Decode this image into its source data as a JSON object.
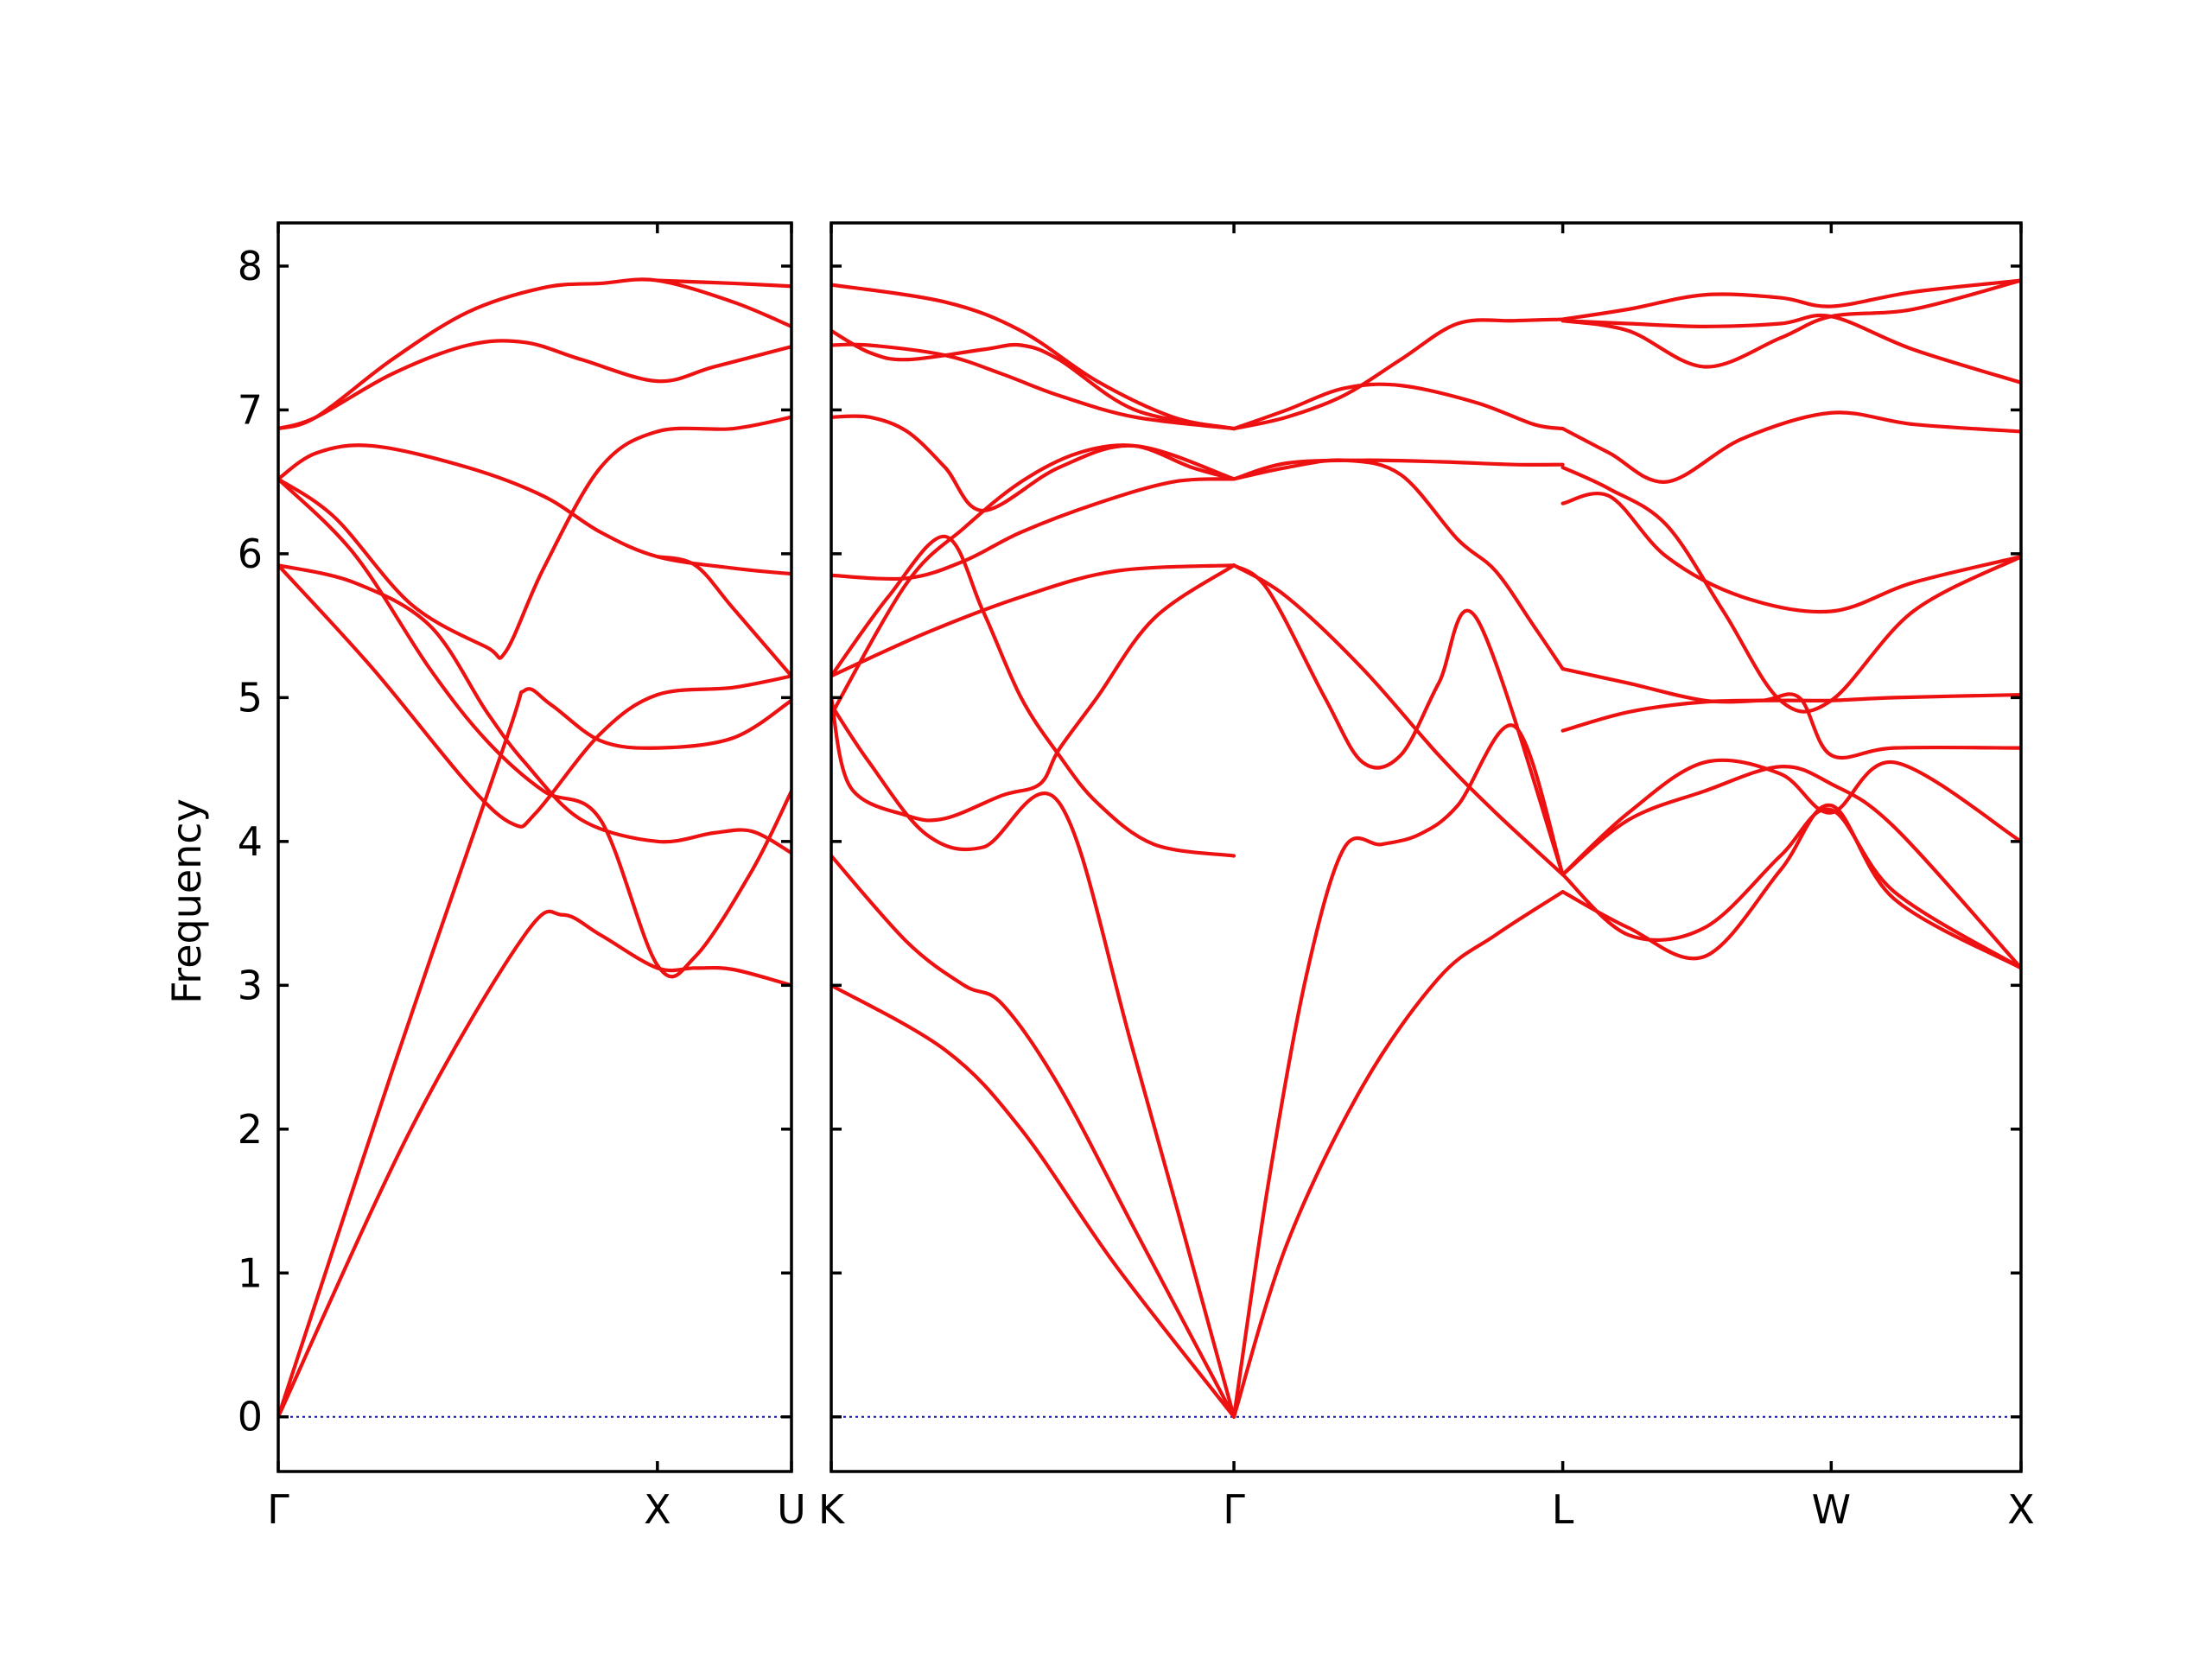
{
  "chart_data": {
    "type": "line",
    "ylabel": "Frequency",
    "xlabel": "",
    "ylim": [
      -0.38,
      8.3
    ],
    "yticks": [
      0,
      1,
      2,
      3,
      4,
      5,
      6,
      7,
      8
    ],
    "grid": false,
    "line_color": "#ee1111",
    "zero_line_color": "#1111aa",
    "panels": [
      {
        "labels": [
          {
            "text": "Γ",
            "x": 0
          },
          {
            "text": "X",
            "x": 1
          },
          {
            "text": "U",
            "x": 1.3536
          }
        ],
        "xlim": [
          0,
          1.3536
        ],
        "series": [
          {
            "x": [
              0,
              0.35,
              0.65,
              0.75,
              0.85,
              1.0,
              1.1,
              1.2,
              1.3536
            ],
            "y": [
              0,
              2.0,
              3.35,
              3.49,
              3.35,
              3.12,
              3.12,
              3.11,
              3.0
            ]
          },
          {
            "x": [
              0,
              0.3,
              0.6,
              0.65,
              0.72,
              0.85,
              1.0,
              1.2,
              1.3536
            ],
            "y": [
              0,
              2.4,
              4.7,
              5.05,
              4.95,
              4.7,
              4.65,
              4.72,
              4.98
            ]
          },
          {
            "x": [
              0,
              0.25,
              0.5,
              0.62,
              0.68,
              0.85,
              1.0,
              1.2,
              1.3536
            ],
            "y": [
              5.92,
              5.2,
              4.4,
              4.12,
              4.2,
              4.75,
              5.02,
              5.07,
              5.15
            ]
          },
          {
            "x": [
              0,
              0.2,
              0.4,
              0.55,
              0.65,
              0.8,
              1.0,
              1.15,
              1.25,
              1.3536
            ],
            "y": [
              5.92,
              5.8,
              5.5,
              4.9,
              4.55,
              4.15,
              4.0,
              4.06,
              4.07,
              3.92
            ]
          },
          {
            "x": [
              0,
              0.15,
              0.35,
              0.55,
              0.6,
              0.7,
              0.85,
              1.0,
              1.2,
              1.3536
            ],
            "y": [
              6.52,
              6.25,
              5.65,
              5.35,
              5.32,
              5.9,
              6.6,
              6.85,
              6.87,
              6.95
            ]
          },
          {
            "x": [
              0,
              0.2,
              0.4,
              0.55,
              0.7,
              0.85,
              1.0,
              1.1,
              1.25,
              1.3536
            ],
            "y": [
              6.52,
              6.0,
              5.2,
              4.7,
              4.35,
              4.15,
              3.14,
              3.2,
              3.8,
              4.35
            ]
          },
          {
            "x": [
              0,
              0.1,
              0.25,
              0.5,
              0.7,
              0.85,
              1.0,
              1.2,
              1.3536
            ],
            "y": [
              6.52,
              6.7,
              6.75,
              6.6,
              6.4,
              6.15,
              5.98,
              5.9,
              5.86
            ]
          },
          {
            "x": [
              0,
              0.1,
              0.3,
              0.5,
              0.65,
              0.8,
              1.0,
              1.15,
              1.3536
            ],
            "y": [
              6.87,
              6.95,
              7.25,
              7.45,
              7.47,
              7.35,
              7.2,
              7.3,
              7.44
            ]
          },
          {
            "x": [
              0,
              0.1,
              0.3,
              0.5,
              0.7,
              0.85,
              1.0,
              1.2,
              1.3536
            ],
            "y": [
              6.87,
              6.95,
              7.35,
              7.68,
              7.85,
              7.88,
              7.9,
              7.75,
              7.58
            ]
          },
          {
            "x": [
              1.0,
              1.1,
              1.2,
              1.3536
            ],
            "y": [
              5.98,
              5.92,
              5.62,
              5.15
            ]
          },
          {
            "x": [
              1.0,
              1.1,
              1.2,
              1.3536
            ],
            "y": [
              7.9,
              7.89,
              7.88,
              7.86
            ]
          }
        ]
      },
      {
        "labels": [
          {
            "text": "K",
            "x": 0
          },
          {
            "text": "Γ",
            "x": 1.0607
          },
          {
            "text": "L",
            "x": 1.9268
          },
          {
            "text": "W",
            "x": 2.6339
          },
          {
            "text": "X",
            "x": 3.1339
          }
        ],
        "xlim": [
          0,
          3.1339
        ],
        "series": [
          {
            "x": [
              0,
              0.3,
              0.5,
              0.75,
              1.0607
            ],
            "y": [
              3.0,
              2.55,
              2.0,
              1.05,
              0
            ]
          },
          {
            "x": [
              0,
              0.2,
              0.35,
              0.45,
              0.6,
              0.8,
              1.0607
            ],
            "y": [
              3.9,
              3.3,
              3.0,
              2.87,
              2.3,
              1.3,
              0
            ]
          },
          {
            "x": [
              0,
              0.1,
              0.25,
              0.4,
              0.6,
              0.8,
              1.0607
            ],
            "y": [
              4.95,
              4.55,
              4.05,
              3.96,
              4.27,
              2.5,
              0
            ]
          },
          {
            "x": [
              0,
              0.05,
              0.2,
              0.3,
              0.45,
              0.55,
              0.6,
              0.7,
              0.85,
              1.0607
            ],
            "y": [
              5.0,
              4.38,
              4.18,
              4.16,
              4.32,
              4.4,
              4.64,
              5.0,
              5.55,
              5.92
            ]
          },
          {
            "x": [
              0,
              0.15,
              0.3,
              0.4,
              0.5,
              0.6,
              0.7,
              0.85,
              1.0607
            ],
            "y": [
              5.15,
              5.7,
              6.12,
              5.6,
              5.0,
              4.6,
              4.27,
              3.98,
              3.9
            ]
          },
          {
            "x": [
              0,
              0.25,
              0.5,
              0.75,
              1.0607
            ],
            "y": [
              5.15,
              5.45,
              5.7,
              5.88,
              5.92
            ]
          },
          {
            "x": [
              0,
              0.2,
              0.35,
              0.5,
              0.7,
              0.9,
              1.0607
            ],
            "y": [
              5.85,
              5.83,
              5.95,
              6.15,
              6.35,
              6.5,
              6.52
            ]
          },
          {
            "x": [
              0,
              0.2,
              0.35,
              0.5,
              0.65,
              0.8,
              0.95,
              1.0607
            ],
            "y": [
              4.88,
              5.8,
              6.18,
              6.5,
              6.7,
              6.75,
              6.6,
              6.52
            ]
          },
          {
            "x": [
              0,
              0.1,
              0.3,
              0.45,
              0.6,
              0.8,
              1.0607
            ],
            "y": [
              7.45,
              7.45,
              7.38,
              7.25,
              7.1,
              6.95,
              6.87
            ]
          },
          {
            "x": [
              0,
              0.1,
              0.2,
              0.4,
              0.5,
              0.6,
              0.8,
              1.0607
            ],
            "y": [
              7.55,
              7.4,
              7.35,
              7.42,
              7.45,
              7.35,
              7.0,
              6.87
            ]
          },
          {
            "x": [
              0,
              0.3,
              0.5,
              0.7,
              0.9,
              1.0607
            ],
            "y": [
              7.87,
              7.75,
              7.55,
              7.2,
              6.95,
              6.87
            ]
          },
          {
            "x": [
              0,
              0.1,
              0.2,
              0.3,
              0.4,
              0.6,
              0.8,
              1.0607
            ],
            "y": [
              6.95,
              6.95,
              6.85,
              6.6,
              6.3,
              6.6,
              6.75,
              6.52
            ]
          },
          {
            "x": [
              1.0607,
              1.2,
              1.4,
              1.6,
              1.75,
              1.9268
            ],
            "y": [
              0,
              1.2,
              2.3,
              3.05,
              3.35,
              3.65
            ]
          },
          {
            "x": [
              1.0607,
              1.15,
              1.25,
              1.35,
              1.45,
              1.55,
              1.65,
              1.8,
              1.9268
            ],
            "y": [
              0,
              1.6,
              3.05,
              3.95,
              3.98,
              4.05,
              4.25,
              4.8,
              3.77
            ]
          },
          {
            "x": [
              1.0607,
              1.15,
              1.3,
              1.4,
              1.5,
              1.6,
              1.7,
              1.9268
            ],
            "y": [
              5.92,
              5.75,
              5.0,
              4.55,
              4.6,
              5.1,
              5.55,
              3.77
            ]
          },
          {
            "x": [
              1.0607,
              1.2,
              1.4,
              1.6,
              1.75,
              1.9268
            ],
            "y": [
              5.92,
              5.7,
              5.2,
              4.6,
              4.2,
              3.77
            ]
          },
          {
            "x": [
              1.0607,
              1.2,
              1.35,
              1.5,
              1.65,
              1.75,
              1.85,
              1.9268
            ],
            "y": [
              6.52,
              6.6,
              6.65,
              6.55,
              6.1,
              5.88,
              5.5,
              5.2
            ]
          },
          {
            "x": [
              1.0607,
              1.2,
              1.4,
              1.6,
              1.8,
              1.9268
            ],
            "y": [
              6.52,
              6.63,
              6.65,
              6.64,
              6.62,
              6.62
            ]
          },
          {
            "x": [
              1.0607,
              1.2,
              1.35,
              1.5,
              1.65,
              1.8,
              1.9268
            ],
            "y": [
              6.87,
              6.95,
              7.1,
              7.35,
              7.6,
              7.62,
              7.63
            ]
          },
          {
            "x": [
              1.0607,
              1.2,
              1.35,
              1.5,
              1.7,
              1.85,
              1.9268
            ],
            "y": [
              6.87,
              7.0,
              7.15,
              7.17,
              7.05,
              6.9,
              6.87
            ]
          },
          {
            "x": [
              1.9268,
              2.1,
              2.3,
              2.5,
              2.6339,
              2.8,
              3.1339
            ],
            "y": [
              3.65,
              3.4,
              3.2,
              3.8,
              4.25,
              3.6,
              3.12
            ]
          },
          {
            "x": [
              1.9268,
              2.1,
              2.3,
              2.5,
              2.6339,
              2.8,
              3.1339
            ],
            "y": [
              3.77,
              3.35,
              3.4,
              3.9,
              4.22,
              3.65,
              3.12
            ]
          },
          {
            "x": [
              1.9268,
              2.1,
              2.3,
              2.5,
              2.6339,
              2.8,
              3.1339
            ],
            "y": [
              3.77,
              4.2,
              4.55,
              4.47,
              4.2,
              4.55,
              4.0
            ]
          },
          {
            "x": [
              1.9268,
              2.1,
              2.3,
              2.5,
              2.6339,
              2.8,
              3.1339
            ],
            "y": [
              3.77,
              4.15,
              4.35,
              4.52,
              4.4,
              4.1,
              3.12
            ]
          },
          {
            "x": [
              1.9268,
              2.1,
              2.3,
              2.5,
              2.6339,
              2.8,
              3.1339
            ],
            "y": [
              4.77,
              4.9,
              4.97,
              4.98,
              4.98,
              5.0,
              5.02
            ]
          },
          {
            "x": [
              1.9268,
              2.1,
              2.3,
              2.45,
              2.55,
              2.6339,
              2.8,
              3.1339
            ],
            "y": [
              5.2,
              5.1,
              4.98,
              4.98,
              5.0,
              4.6,
              4.65,
              4.65
            ]
          },
          {
            "x": [
              1.9268,
              2.05,
              2.2,
              2.35,
              2.5,
              2.6339,
              2.85,
              3.1339
            ],
            "y": [
              6.6,
              6.45,
              6.2,
              5.6,
              4.98,
              4.98,
              5.6,
              5.98
            ]
          },
          {
            "x": [
              1.9268,
              2.05,
              2.2,
              2.4,
              2.6339,
              2.85,
              3.1339
            ],
            "y": [
              6.35,
              6.4,
              5.98,
              5.7,
              5.6,
              5.8,
              5.98
            ]
          },
          {
            "x": [
              1.9268,
              2.05,
              2.2,
              2.4,
              2.6339,
              2.85,
              3.1339
            ],
            "y": [
              6.87,
              6.7,
              6.5,
              6.8,
              6.98,
              6.9,
              6.85
            ]
          },
          {
            "x": [
              1.9268,
              2.1,
              2.3,
              2.5,
              2.6339,
              2.85,
              3.1339
            ],
            "y": [
              7.62,
              7.6,
              7.58,
              7.6,
              7.65,
              7.42,
              7.19
            ]
          },
          {
            "x": [
              1.9268,
              2.1,
              2.3,
              2.5,
              2.6339,
              2.85,
              3.1339
            ],
            "y": [
              7.63,
              7.7,
              7.8,
              7.78,
              7.72,
              7.82,
              7.9
            ]
          },
          {
            "x": [
              1.9268,
              2.1,
              2.3,
              2.5,
              2.6339,
              2.85,
              3.1339
            ],
            "y": [
              7.62,
              7.55,
              7.3,
              7.5,
              7.65,
              7.7,
              7.9
            ]
          }
        ]
      }
    ]
  }
}
